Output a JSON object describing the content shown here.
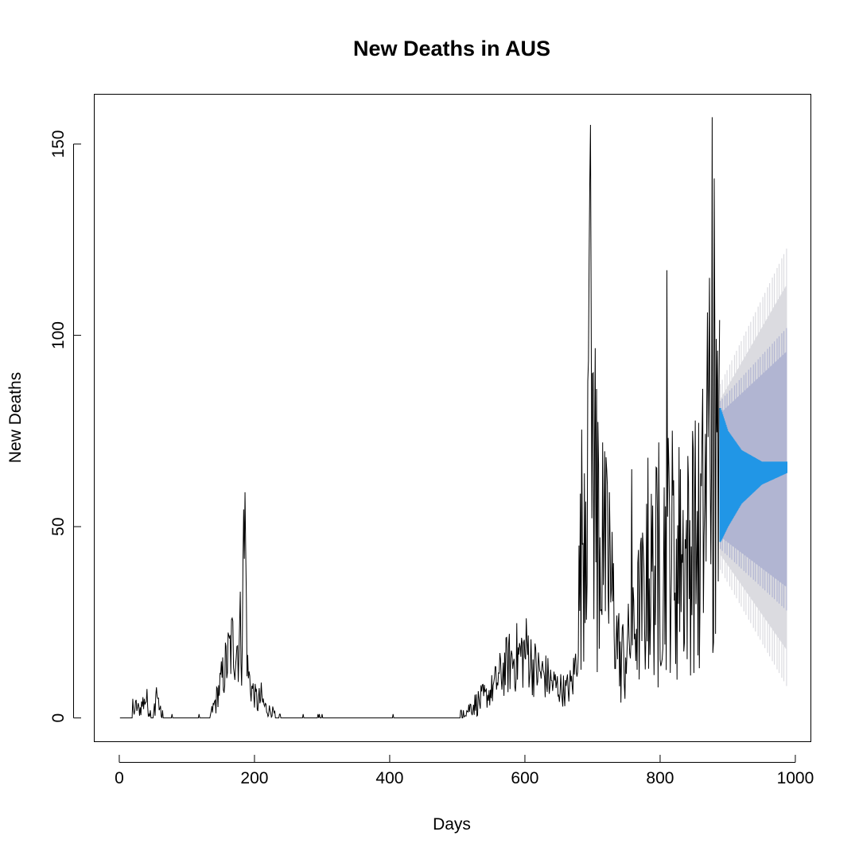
{
  "chart_data": {
    "type": "line",
    "title": "New Deaths in AUS",
    "xlabel": "Days",
    "ylabel": "New Deaths",
    "xlim": [
      -37,
      1023
    ],
    "ylim": [
      -6.2,
      163
    ],
    "x_ticks": [
      0,
      200,
      400,
      600,
      800,
      1000
    ],
    "y_ticks": [
      0,
      50,
      100,
      150
    ],
    "grid": false,
    "legend": "none",
    "observed_range": [
      1,
      888
    ],
    "forecast_range": [
      889,
      987
    ],
    "colors": {
      "observed": "#000000",
      "forecast_mean": "#2196e6",
      "interval_80": "#b1b5d2",
      "interval_95": "#dbdbe0"
    },
    "observed_anchors": [
      [
        1,
        0
      ],
      [
        10,
        0
      ],
      [
        20,
        1
      ],
      [
        25,
        3
      ],
      [
        30,
        2
      ],
      [
        35,
        4
      ],
      [
        40,
        5
      ],
      [
        45,
        1
      ],
      [
        50,
        0
      ],
      [
        55,
        7
      ],
      [
        58,
        4
      ],
      [
        62,
        1
      ],
      [
        70,
        0
      ],
      [
        80,
        0.5
      ],
      [
        90,
        0
      ],
      [
        100,
        0
      ],
      [
        115,
        0.5
      ],
      [
        125,
        0
      ],
      [
        130,
        0.5
      ],
      [
        135,
        1
      ],
      [
        140,
        3
      ],
      [
        145,
        6
      ],
      [
        150,
        9
      ],
      [
        155,
        12
      ],
      [
        160,
        15
      ],
      [
        165,
        18
      ],
      [
        170,
        20
      ],
      [
        175,
        19
      ],
      [
        180,
        23
      ],
      [
        183,
        35
      ],
      [
        186,
        45
      ],
      [
        190,
        12
      ],
      [
        195,
        8
      ],
      [
        200,
        6
      ],
      [
        205,
        4
      ],
      [
        210,
        5
      ],
      [
        215,
        3
      ],
      [
        220,
        2
      ],
      [
        225,
        2
      ],
      [
        230,
        1
      ],
      [
        240,
        0.3
      ],
      [
        260,
        0
      ],
      [
        300,
        0.3
      ],
      [
        350,
        0
      ],
      [
        400,
        0.2
      ],
      [
        450,
        0
      ],
      [
        495,
        0
      ],
      [
        500,
        0.5
      ],
      [
        510,
        1
      ],
      [
        520,
        3
      ],
      [
        530,
        4
      ],
      [
        540,
        5
      ],
      [
        550,
        7
      ],
      [
        560,
        10
      ],
      [
        570,
        13
      ],
      [
        580,
        15
      ],
      [
        590,
        16
      ],
      [
        600,
        17
      ],
      [
        605,
        18
      ],
      [
        610,
        14
      ],
      [
        620,
        12
      ],
      [
        630,
        11
      ],
      [
        640,
        9
      ],
      [
        650,
        8
      ],
      [
        660,
        7
      ],
      [
        670,
        9
      ],
      [
        675,
        14
      ],
      [
        680,
        30
      ],
      [
        685,
        50
      ],
      [
        690,
        70
      ],
      [
        695,
        85
      ],
      [
        700,
        75
      ],
      [
        705,
        60
      ],
      [
        710,
        50
      ],
      [
        715,
        45
      ],
      [
        720,
        40
      ],
      [
        725,
        35
      ],
      [
        730,
        30
      ],
      [
        735,
        22
      ],
      [
        740,
        18
      ],
      [
        745,
        17
      ],
      [
        750,
        18
      ],
      [
        760,
        22
      ],
      [
        770,
        28
      ],
      [
        780,
        33
      ],
      [
        790,
        38
      ],
      [
        800,
        40
      ],
      [
        810,
        45
      ],
      [
        820,
        45
      ],
      [
        830,
        43
      ],
      [
        840,
        42
      ],
      [
        850,
        45
      ],
      [
        860,
        48
      ],
      [
        870,
        60
      ],
      [
        875,
        70
      ],
      [
        880,
        65
      ],
      [
        885,
        58
      ],
      [
        888,
        55
      ]
    ],
    "observed_spikes": [
      [
        20,
        5
      ],
      [
        37,
        5
      ],
      [
        55,
        8
      ],
      [
        183,
        41
      ],
      [
        186,
        59
      ],
      [
        272,
        1
      ],
      [
        300,
        1
      ],
      [
        405,
        1
      ],
      [
        693,
        88
      ],
      [
        695,
        120
      ],
      [
        697,
        155
      ],
      [
        700,
        90
      ],
      [
        706,
        86
      ],
      [
        715,
        72
      ],
      [
        725,
        59
      ],
      [
        758,
        65
      ],
      [
        782,
        68
      ],
      [
        798,
        72
      ],
      [
        810,
        117
      ],
      [
        830,
        65
      ],
      [
        848,
        75
      ],
      [
        870,
        106
      ],
      [
        873,
        115
      ],
      [
        877,
        157
      ],
      [
        880,
        141
      ],
      [
        885,
        96
      ],
      [
        888,
        104
      ]
    ],
    "observed_dips": [
      [
        700,
        30
      ],
      [
        707,
        12
      ],
      [
        742,
        4
      ],
      [
        748,
        5
      ],
      [
        797,
        8
      ],
      [
        825,
        10
      ],
      [
        858,
        13
      ],
      [
        878,
        17
      ],
      [
        882,
        22
      ],
      [
        885,
        14
      ]
    ],
    "forecast_mean_envelope": {
      "x": [
        889,
        900,
        920,
        950,
        987
      ],
      "lo": [
        46,
        50,
        56,
        61,
        64
      ],
      "hi": [
        81,
        75,
        70,
        67,
        67
      ]
    },
    "interval_80_envelope": {
      "x": [
        889,
        987
      ],
      "lo": [
        42,
        24
      ],
      "hi": [
        85,
        106
      ]
    },
    "interval_95_envelope": {
      "x": [
        889,
        987
      ],
      "lo": [
        36,
        2
      ],
      "hi": [
        90,
        129
      ]
    }
  }
}
